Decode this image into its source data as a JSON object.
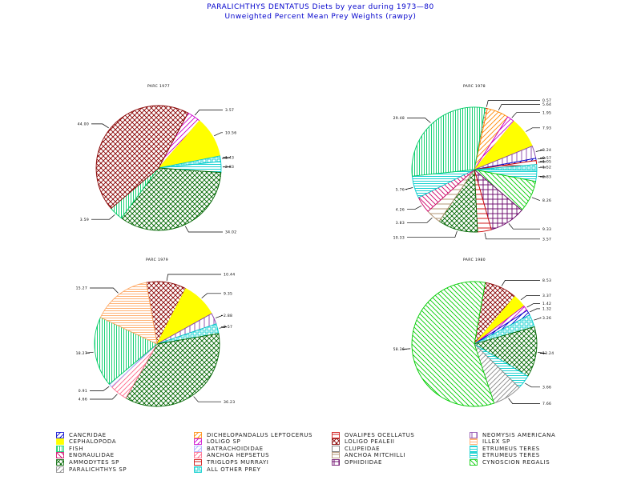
{
  "header": {
    "title": "PARALICHTHYS DENTATUS Diets by year during 1973—80",
    "subtitle": "Unweighted Percent Mean Prey Weights (rawpy)"
  },
  "legend": [
    {
      "label": "CANCRIDAE",
      "color": "#0000cc",
      "pattern": "diag-up"
    },
    {
      "label": "DICHELOPANDALUS LEPTOCERUS",
      "color": "#ff8800",
      "pattern": "diag-up"
    },
    {
      "label": "OVALIPES OCELLATUS",
      "color": "#cc0000",
      "pattern": "hlines-sparse"
    },
    {
      "label": "NEOMYSIS AMERICANA",
      "color": "#8844aa",
      "pattern": "vlines-sparse"
    },
    {
      "label": "CEPHALOPODA",
      "color": "#ffff00",
      "pattern": "solid"
    },
    {
      "label": "LOLIGO SP",
      "color": "#cc00cc",
      "pattern": "diag-up"
    },
    {
      "label": "LOLIGO PEALEII",
      "color": "#880000",
      "pattern": "crosshatch"
    },
    {
      "label": "ILLEX SP",
      "color": "#ffaa66",
      "pattern": "hlines"
    },
    {
      "label": "FISH",
      "color": "#00cc66",
      "pattern": "vlines"
    },
    {
      "label": "BATRACHOIDIDAE",
      "color": "#aaaaff",
      "pattern": "diag-up"
    },
    {
      "label": "CLUPEIDAE",
      "color": "#ffffff",
      "pattern": "solid"
    },
    {
      "label": "ETRUMEUS TERES",
      "color": "#00cccc",
      "pattern": "hlines"
    },
    {
      "label": "ENGRAULIDAE",
      "color": "#cc0066",
      "pattern": "diag-down"
    },
    {
      "label": "ANCHOA HEPSETUS",
      "color": "#ff6688",
      "pattern": "diag-up"
    },
    {
      "label": "ANCHOA MITCHILLI",
      "color": "#aa8866",
      "pattern": "hlines-sparse"
    },
    {
      "label": "ETRUMEUS TERES",
      "color": "#00cccc",
      "pattern": "grid"
    },
    {
      "label": "AMMODYTES SP",
      "color": "#006600",
      "pattern": "crosshatch"
    },
    {
      "label": "TRIGLOPS MURRAYI",
      "color": "#cc0000",
      "pattern": "hlines-sparse"
    },
    {
      "label": "OPHIDIIDAE",
      "color": "#660066",
      "pattern": "grid"
    },
    {
      "label": "CYNOSCION REGALIS",
      "color": "#00cc00",
      "pattern": "diag-down"
    },
    {
      "label": "PARALICHTHYS SP",
      "color": "#888888",
      "pattern": "diag-up"
    },
    {
      "label": "ALL OTHER PREY",
      "color": "#00cccc",
      "pattern": "box"
    }
  ],
  "chart_data": [
    {
      "type": "pie",
      "title": "PARC 1977",
      "slices": [
        {
          "label": "3.57",
          "value": 3.57,
          "prey": "LOLIGO SP"
        },
        {
          "label": "10.56",
          "value": 10.56,
          "prey": "CEPHALOPODA"
        },
        {
          "label": "1.43",
          "value": 1.43,
          "prey": "ALL OTHER PREY"
        },
        {
          "label": "2.83",
          "value": 2.83,
          "prey": "ETRUMEUS TERES"
        },
        {
          "label": "34.02",
          "value": 34.02,
          "prey": "AMMODYTES SP"
        },
        {
          "label": "3.59",
          "value": 3.59,
          "prey": "FISH"
        },
        {
          "label": "44.00",
          "value": 44.0,
          "prey": "LOLIGO PEALEII"
        }
      ]
    },
    {
      "type": "pie",
      "title": "PARC 1978",
      "slices": [
        {
          "label": "0.57",
          "value": 0.57,
          "prey": "OVALIPES OCELLATUS"
        },
        {
          "label": "5.64",
          "value": 5.64,
          "prey": "DICHELOPANDALUS LEPTOCERUS"
        },
        {
          "label": "1.95",
          "value": 1.95,
          "prey": "LOLIGO SP"
        },
        {
          "label": "7.93",
          "value": 7.93,
          "prey": "CEPHALOPODA"
        },
        {
          "label": "3.24",
          "value": 3.24,
          "prey": "NEOMYSIS AMERICANA"
        },
        {
          "label": "0.57",
          "value": 0.57,
          "prey": "CANCRIDAE"
        },
        {
          "label": "1.05",
          "value": 1.05,
          "prey": "OVALIPES OCELLATUS"
        },
        {
          "label": "1.52",
          "value": 1.52,
          "prey": "ALL OTHER PREY"
        },
        {
          "label": "2.83",
          "value": 2.83,
          "prey": "ETRUMEUS TERES"
        },
        {
          "label": "8.26",
          "value": 8.26,
          "prey": "CYNOSCION REGALIS"
        },
        {
          "label": "9.33",
          "value": 9.33,
          "prey": "OPHIDIIDAE"
        },
        {
          "label": "3.57",
          "value": 3.57,
          "prey": "TRIGLOPS MURRAYI"
        },
        {
          "label": "10.33",
          "value": 10.33,
          "prey": "AMMODYTES SP"
        },
        {
          "label": "3.83",
          "value": 3.83,
          "prey": "ANCHOA MITCHILLI"
        },
        {
          "label": "4.26",
          "value": 4.26,
          "prey": "ENGRAULIDAE"
        },
        {
          "label": "5.76",
          "value": 5.76,
          "prey": "ETRUMEUS TERES"
        },
        {
          "label": "29.48",
          "value": 29.48,
          "prey": "FISH"
        }
      ]
    },
    {
      "type": "pie",
      "title": "PARC 1979",
      "slices": [
        {
          "label": "10.44",
          "value": 10.44,
          "prey": "LOLIGO PEALEII"
        },
        {
          "label": "9.35",
          "value": 9.35,
          "prey": "CEPHALOPODA"
        },
        {
          "label": "2.88",
          "value": 2.88,
          "prey": "NEOMYSIS AMERICANA"
        },
        {
          "label": "2.57",
          "value": 2.57,
          "prey": "ALL OTHER PREY"
        },
        {
          "label": "36.23",
          "value": 36.23,
          "prey": "AMMODYTES SP"
        },
        {
          "label": "4.66",
          "value": 4.66,
          "prey": "ANCHOA HEPSETUS"
        },
        {
          "label": "0.91",
          "value": 0.91,
          "prey": "BATRACHOIDIDAE"
        },
        {
          "label": "18.27",
          "value": 18.27,
          "prey": "FISH"
        },
        {
          "label": "15.27",
          "value": 15.27,
          "prey": "ILLEX SP"
        }
      ]
    },
    {
      "type": "pie",
      "title": "PARC 1980",
      "slices": [
        {
          "label": "8.53",
          "value": 8.53,
          "prey": "LOLIGO PEALEII"
        },
        {
          "label": "3.37",
          "value": 3.37,
          "prey": "CEPHALOPODA"
        },
        {
          "label": "1.42",
          "value": 1.42,
          "prey": "LOLIGO SP"
        },
        {
          "label": "1.32",
          "value": 1.32,
          "prey": "CANCRIDAE"
        },
        {
          "label": "3.26",
          "value": 3.26,
          "prey": "ALL OTHER PREY"
        },
        {
          "label": "13.24",
          "value": 13.24,
          "prey": "AMMODYTES SP"
        },
        {
          "label": "3.66",
          "value": 3.66,
          "prey": "ETRUMEUS TERES"
        },
        {
          "label": "7.66",
          "value": 7.66,
          "prey": "PARALICHTHYS SP"
        },
        {
          "label": "58.36",
          "value": 58.36,
          "prey": "CYNOSCION REGALIS"
        }
      ]
    }
  ]
}
